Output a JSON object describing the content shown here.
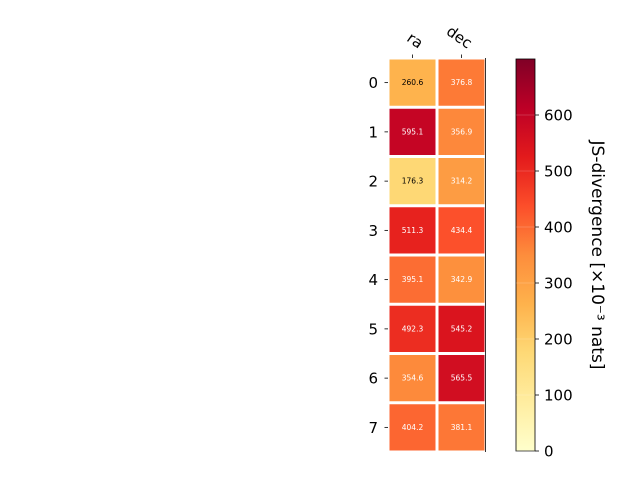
{
  "chart_data": {
    "type": "heatmap",
    "columns": [
      "ra",
      "dec"
    ],
    "rows": [
      "0",
      "1",
      "2",
      "3",
      "4",
      "5",
      "6",
      "7"
    ],
    "values": [
      [
        260.6,
        376.8
      ],
      [
        595.1,
        356.9
      ],
      [
        176.3,
        314.2
      ],
      [
        511.3,
        434.4
      ],
      [
        395.1,
        342.9
      ],
      [
        492.3,
        545.2
      ],
      [
        354.6,
        565.5
      ],
      [
        404.2,
        381.1
      ]
    ],
    "value_labels": [
      [
        "260.6",
        "376.8"
      ],
      [
        "595.1",
        "356.9"
      ],
      [
        "176.3",
        "314.2"
      ],
      [
        "511.3",
        "434.4"
      ],
      [
        "395.1",
        "342.9"
      ],
      [
        "492.3",
        "545.2"
      ],
      [
        "354.6",
        "565.5"
      ],
      [
        "404.2",
        "381.1"
      ]
    ],
    "colorbar": {
      "label": "JS-divergence [×10⁻³ nats]",
      "range": [
        0,
        700
      ],
      "ticks": [
        0,
        100,
        200,
        300,
        400,
        500,
        600
      ],
      "tick_labels": [
        "0",
        "100",
        "200",
        "300",
        "400",
        "500",
        "600"
      ],
      "colormap": "YlOrRd",
      "colors": [
        "#ffffcc",
        "#ffeda0",
        "#fed976",
        "#feb24c",
        "#fd8d3c",
        "#fc4e2a",
        "#e31a1c",
        "#bd0026",
        "#800026"
      ]
    },
    "label_colors": {
      "dark": "#000000",
      "light": "#ffffff"
    },
    "grid": false
  }
}
